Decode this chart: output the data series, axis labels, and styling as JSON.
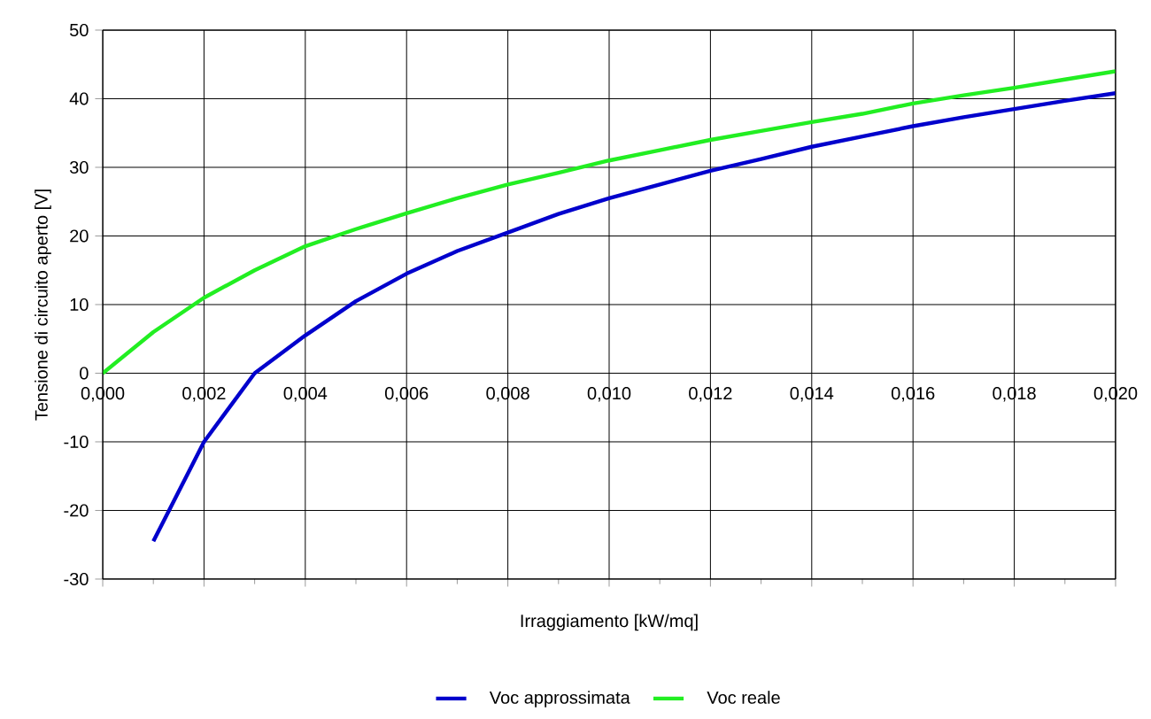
{
  "chart_data": {
    "type": "line",
    "xlabel": "Irraggiamento [kW/mq]",
    "ylabel": "Tensione di circuito aperto [V]",
    "xlim": [
      0,
      0.02
    ],
    "ylim": [
      -30,
      50
    ],
    "xticks": [
      {
        "value": 0,
        "label": "0,000"
      },
      {
        "value": 0.002,
        "label": "0,002"
      },
      {
        "value": 0.004,
        "label": "0,004"
      },
      {
        "value": 0.006,
        "label": "0,006"
      },
      {
        "value": 0.008,
        "label": "0,008"
      },
      {
        "value": 0.01,
        "label": "0,010"
      },
      {
        "value": 0.012,
        "label": "0,012"
      },
      {
        "value": 0.014,
        "label": "0,014"
      },
      {
        "value": 0.016,
        "label": "0,016"
      },
      {
        "value": 0.018,
        "label": "0,018"
      },
      {
        "value": 0.02,
        "label": "0,020"
      }
    ],
    "yticks": [
      -30,
      -20,
      -10,
      0,
      10,
      20,
      30,
      40,
      50
    ],
    "x": [
      0,
      0.001,
      0.002,
      0.003,
      0.004,
      0.005,
      0.006,
      0.007,
      0.008,
      0.009,
      0.01,
      0.011,
      0.012,
      0.013,
      0.014,
      0.015,
      0.016,
      0.017,
      0.018,
      0.019,
      0.02
    ],
    "series": [
      {
        "name": "Voc approssimata",
        "color": "#0000cc",
        "x": [
          0.001,
          0.002,
          0.003,
          0.004,
          0.005,
          0.006,
          0.007,
          0.008,
          0.009,
          0.01,
          0.011,
          0.012,
          0.013,
          0.014,
          0.015,
          0.016,
          0.017,
          0.018,
          0.019,
          0.02
        ],
        "values": [
          -24.5,
          -10,
          0,
          5.5,
          10.5,
          14.5,
          17.8,
          20.5,
          23.2,
          25.5,
          27.5,
          29.5,
          31.2,
          33,
          34.5,
          36,
          37.3,
          38.5,
          39.7,
          40.8
        ]
      },
      {
        "name": "Voc reale",
        "color": "#22ee22",
        "values": [
          0,
          6,
          11,
          15,
          18.5,
          21,
          23.3,
          25.5,
          27.5,
          29.2,
          31,
          32.5,
          34,
          35.3,
          36.6,
          37.8,
          39.3,
          40.5,
          41.6,
          42.8,
          44
        ]
      }
    ],
    "grid": true,
    "legend": "bottom",
    "marker": "none",
    "line_style": "solid"
  }
}
